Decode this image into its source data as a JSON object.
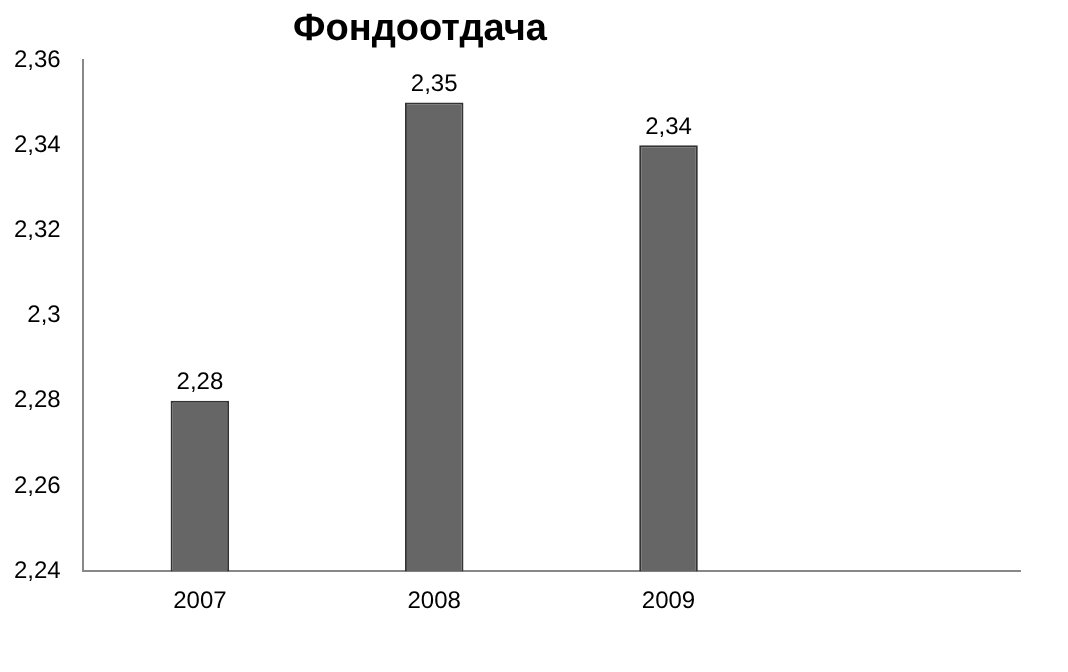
{
  "chart_data": {
    "type": "bar",
    "title": "Фондоотдача",
    "categories": [
      "2007",
      "2008",
      "2009",
      null
    ],
    "values": [
      2.28,
      2.35,
      2.34,
      null
    ],
    "value_labels": [
      "2,28",
      "2,35",
      "2,34",
      null
    ],
    "color": "#666666",
    "ylim": [
      2.24,
      2.36
    ],
    "yticks": [
      {
        "value": 2.24,
        "label": "2,24"
      },
      {
        "value": 2.26,
        "label": "2,26"
      },
      {
        "value": 2.28,
        "label": "2,28"
      },
      {
        "value": 2.3,
        "label": "2,3"
      },
      {
        "value": 2.32,
        "label": "2,32"
      },
      {
        "value": 2.34,
        "label": "2,34"
      },
      {
        "value": 2.36,
        "label": "2,36"
      }
    ],
    "grid": false,
    "legend": false
  }
}
